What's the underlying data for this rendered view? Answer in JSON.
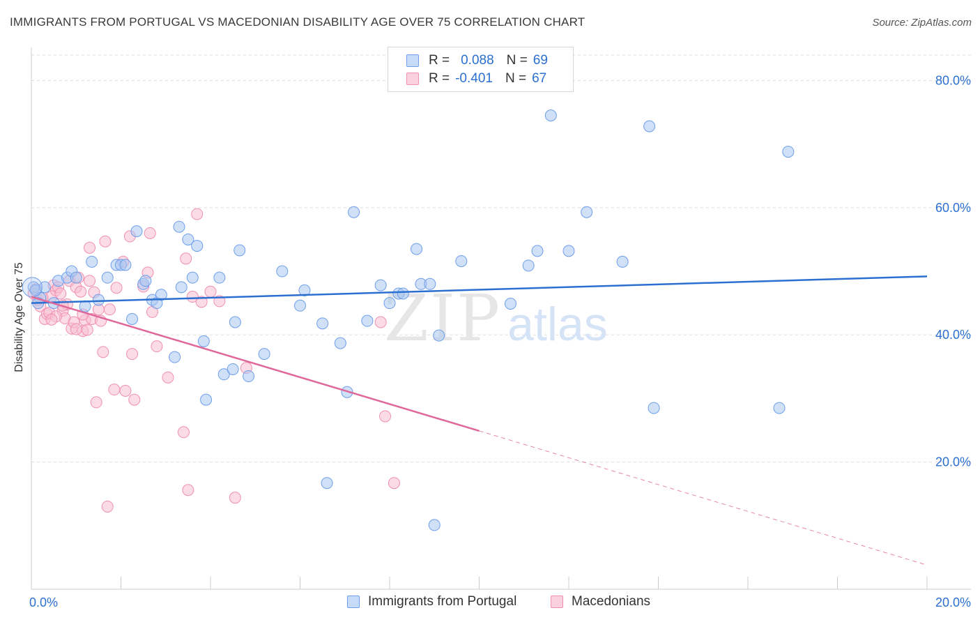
{
  "header": {
    "title": "IMMIGRANTS FROM PORTUGAL VS MACEDONIAN DISABILITY AGE OVER 75 CORRELATION CHART",
    "source": "Source: ZipAtlas.com"
  },
  "watermark": {
    "zip": "ZIP",
    "atlas": "atlas"
  },
  "legend_top": {
    "r_label": "R =",
    "n_label": "N =",
    "rows": [
      {
        "r": "0.088",
        "n": "69",
        "color": "#6d9eeb"
      },
      {
        "r": "-0.401",
        "n": "67",
        "color": "#f08fb0"
      }
    ]
  },
  "legend_bottom": {
    "items": [
      "Immigrants from Portugal",
      "Macedonians"
    ]
  },
  "colors": {
    "blue_fill": "#aac6f0",
    "blue_stroke": "#6d9eeb",
    "blue_line": "#2b6fd0",
    "pink_fill": "#f7bfd2",
    "pink_stroke": "#f08fb0",
    "pink_line": "#e0679a",
    "tick_label": "#2b6fd0",
    "grid": "#dddddd"
  },
  "chart_data": {
    "type": "scatter",
    "title": "IMMIGRANTS FROM PORTUGAL VS MACEDONIAN DISABILITY AGE OVER 75 CORRELATION CHART",
    "xlabel": "",
    "ylabel": "Disability Age Over 75",
    "xlim": [
      0,
      20
    ],
    "ylim": [
      0,
      84
    ],
    "x_tick_labels": [
      "0.0%",
      "20.0%"
    ],
    "y_tick_labels": [
      "20.0%",
      "40.0%",
      "60.0%",
      "80.0%"
    ],
    "y_ticks": [
      20,
      40,
      60,
      80
    ],
    "grid": true,
    "legend_placement": "top-center",
    "series": [
      {
        "name": "Immigrants from Portugal",
        "r": 0.088,
        "n": 69,
        "trend": {
          "x": [
            0,
            20
          ],
          "y": [
            45.0,
            49.2
          ],
          "dashed_from": null
        },
        "points": [
          [
            0.05,
            47.5
          ],
          [
            0.1,
            47
          ],
          [
            0.2,
            45.8
          ],
          [
            0.3,
            47.5
          ],
          [
            0.5,
            45
          ],
          [
            0.6,
            48.5
          ],
          [
            0.8,
            49
          ],
          [
            0.9,
            50
          ],
          [
            1.0,
            49
          ],
          [
            1.2,
            44.5
          ],
          [
            1.35,
            51.5
          ],
          [
            1.5,
            45.5
          ],
          [
            1.7,
            49
          ],
          [
            1.9,
            51
          ],
          [
            2.0,
            51
          ],
          [
            2.1,
            51
          ],
          [
            2.25,
            42.5
          ],
          [
            2.35,
            56.3
          ],
          [
            2.5,
            48
          ],
          [
            2.55,
            48.5
          ],
          [
            2.7,
            45.5
          ],
          [
            2.8,
            45
          ],
          [
            2.9,
            46.3
          ],
          [
            3.2,
            36.5
          ],
          [
            3.3,
            57
          ],
          [
            3.35,
            47.5
          ],
          [
            3.5,
            55
          ],
          [
            3.6,
            49
          ],
          [
            3.7,
            54
          ],
          [
            3.85,
            39
          ],
          [
            3.9,
            29.8
          ],
          [
            4.2,
            49
          ],
          [
            4.3,
            33.8
          ],
          [
            4.5,
            34.6
          ],
          [
            4.55,
            42
          ],
          [
            4.65,
            53.3
          ],
          [
            4.85,
            33.5
          ],
          [
            5.2,
            37
          ],
          [
            5.6,
            50
          ],
          [
            6.0,
            44.6
          ],
          [
            6.1,
            47
          ],
          [
            6.5,
            41.8
          ],
          [
            6.6,
            16.7
          ],
          [
            6.9,
            38.7
          ],
          [
            7.05,
            31
          ],
          [
            7.2,
            59.3
          ],
          [
            7.5,
            42.2
          ],
          [
            7.8,
            47.8
          ],
          [
            8.0,
            45
          ],
          [
            8.2,
            46.5
          ],
          [
            8.3,
            46.5
          ],
          [
            8.6,
            53.5
          ],
          [
            8.7,
            48
          ],
          [
            8.9,
            48
          ],
          [
            9.0,
            10.1
          ],
          [
            9.1,
            39.9
          ],
          [
            9.6,
            51.6
          ],
          [
            10.7,
            44.9
          ],
          [
            11.1,
            50.9
          ],
          [
            11.3,
            53.2
          ],
          [
            11.6,
            74.5
          ],
          [
            12.0,
            53.2
          ],
          [
            12.4,
            59.3
          ],
          [
            13.2,
            51.5
          ],
          [
            13.8,
            72.8
          ],
          [
            13.9,
            28.5
          ],
          [
            16.7,
            28.5
          ],
          [
            16.9,
            68.8
          ],
          [
            0.15,
            45
          ]
        ]
      },
      {
        "name": "Macedonians",
        "r": -0.401,
        "n": 67,
        "trend": {
          "x": [
            0,
            20
          ],
          "y": [
            46.0,
            3.8
          ],
          "dashed_from": 10.0
        },
        "points": [
          [
            0.05,
            46.5
          ],
          [
            0.15,
            45.5
          ],
          [
            0.2,
            44.5
          ],
          [
            0.3,
            42.5
          ],
          [
            0.35,
            43.3
          ],
          [
            0.4,
            43.5
          ],
          [
            0.45,
            46
          ],
          [
            0.5,
            47.8
          ],
          [
            0.55,
            47
          ],
          [
            0.6,
            47.5
          ],
          [
            0.65,
            46.5
          ],
          [
            0.7,
            43.8
          ],
          [
            0.75,
            42.6
          ],
          [
            0.8,
            44.8
          ],
          [
            0.85,
            48.5
          ],
          [
            0.9,
            41
          ],
          [
            0.95,
            42
          ],
          [
            1.0,
            47.5
          ],
          [
            1.05,
            49
          ],
          [
            1.1,
            46.8
          ],
          [
            1.15,
            40.6
          ],
          [
            1.2,
            42.3
          ],
          [
            1.25,
            40.8
          ],
          [
            1.3,
            48.5
          ],
          [
            1.35,
            42.5
          ],
          [
            1.4,
            46.7
          ],
          [
            1.45,
            29.4
          ],
          [
            1.5,
            44
          ],
          [
            1.55,
            42.2
          ],
          [
            1.6,
            37.3
          ],
          [
            1.65,
            54.7
          ],
          [
            1.7,
            13
          ],
          [
            1.75,
            44
          ],
          [
            1.85,
            31.4
          ],
          [
            2.05,
            51.5
          ],
          [
            2.1,
            31.2
          ],
          [
            2.2,
            55.5
          ],
          [
            2.25,
            37
          ],
          [
            2.3,
            29.8
          ],
          [
            2.5,
            47.6
          ],
          [
            2.6,
            49.8
          ],
          [
            2.65,
            56
          ],
          [
            2.7,
            43.6
          ],
          [
            2.8,
            38.2
          ],
          [
            3.05,
            33.3
          ],
          [
            3.4,
            24.7
          ],
          [
            3.45,
            52
          ],
          [
            3.5,
            15.6
          ],
          [
            3.6,
            46
          ],
          [
            3.7,
            59
          ],
          [
            3.8,
            45.2
          ],
          [
            4.0,
            46.8
          ],
          [
            4.2,
            45.3
          ],
          [
            4.55,
            14.4
          ],
          [
            4.8,
            34.8
          ],
          [
            7.8,
            42
          ],
          [
            7.9,
            27.2
          ],
          [
            8.1,
            16.7
          ],
          [
            1.3,
            53.7
          ],
          [
            0.25,
            45.8
          ],
          [
            0.55,
            42.9
          ],
          [
            1.0,
            40.9
          ],
          [
            0.7,
            44.6
          ],
          [
            0.45,
            42.4
          ],
          [
            1.9,
            47.4
          ],
          [
            1.15,
            43.2
          ],
          [
            0.1,
            47.2
          ]
        ]
      }
    ]
  }
}
